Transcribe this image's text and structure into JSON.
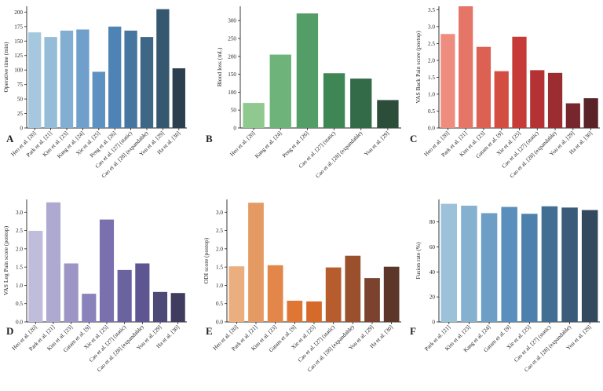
{
  "figure": {
    "chart_data": [
      {
        "panel": "A",
        "type": "bar",
        "ylabel": "Operative time (min)",
        "ylim": [
          0,
          210
        ],
        "yticks": [
          0,
          25,
          50,
          75,
          100,
          125,
          150,
          175,
          200
        ],
        "categories": [
          "Heo et al. [20]",
          "Park et al. [21]",
          "Kim et al. [23]",
          "Kang et al. [24]",
          "Xie et al. [25]",
          "Peng et al. [26]",
          "Cao et al. [27] (static)",
          "Cao et al. [28] (expandable)",
          "You et al. [29]",
          "Ha et al. [30]"
        ],
        "values": [
          165,
          157,
          168,
          170,
          97,
          175,
          168,
          157,
          205,
          103
        ],
        "colors": [
          "#a6c8de",
          "#95bcd8",
          "#82aed1",
          "#6f9fca",
          "#5d91c2",
          "#4f83b6",
          "#46759f",
          "#3e6687",
          "#355770",
          "#2c3f4f"
        ]
      },
      {
        "panel": "B",
        "type": "bar",
        "ylabel": "Blood loss (mL)",
        "ylim": [
          0,
          340
        ],
        "yticks": [
          0,
          50,
          100,
          150,
          200,
          250,
          300
        ],
        "categories": [
          "Heo et al. [20]",
          "Kang et al. [24]",
          "Peng et al. [26]",
          "Cao et al. [27] (static)",
          "Cao et al. [28] (expandable)",
          "You et al. [29]"
        ],
        "values": [
          70,
          205,
          320,
          153,
          138,
          78
        ],
        "colors": [
          "#90c990",
          "#6db37a",
          "#539d66",
          "#3e8654",
          "#336b48",
          "#2b4d39"
        ]
      },
      {
        "panel": "C",
        "type": "bar",
        "ylabel": "VAS Back Pain score (postop)",
        "ylim": [
          0,
          3.6
        ],
        "yticks": [
          0.0,
          0.5,
          1.0,
          1.5,
          2.0,
          2.5,
          3.0,
          3.5
        ],
        "categories": [
          "Heo et al. [20]",
          "Park et al. [21]",
          "Kim et al. [23]",
          "Gatam et al. [9]",
          "Xie et al. [25]",
          "Cao et al. [27] (static)",
          "Cao et al. [28] (expandable)",
          "You et al. [29]",
          "Ha et al. [30]"
        ],
        "values": [
          2.78,
          3.6,
          2.4,
          1.68,
          2.7,
          1.71,
          1.63,
          0.73,
          0.88
        ],
        "colors": [
          "#ee8c80",
          "#e47567",
          "#dd6152",
          "#d44d41",
          "#c63b37",
          "#b43233",
          "#9b2d31",
          "#77262e",
          "#5a2328"
        ]
      },
      {
        "panel": "D",
        "type": "bar",
        "ylabel": "VAS Leg Pain score (postop)",
        "ylim": [
          0,
          3.35
        ],
        "yticks": [
          0.0,
          0.5,
          1.0,
          1.5,
          2.0,
          2.5,
          3.0
        ],
        "categories": [
          "Heo et al. [20]",
          "Park et al. [21]",
          "Kim et al. [23]",
          "Gatam et al. [9]",
          "Xie et al. [25]",
          "Cao et al. [27] (static)",
          "Cao et al. [28] (expandable)",
          "You et al. [29]",
          "Ha et al. [30]"
        ],
        "values": [
          2.49,
          3.27,
          1.6,
          0.77,
          2.8,
          1.42,
          1.6,
          0.82,
          0.79
        ],
        "colors": [
          "#c0bcdc",
          "#aea9d1",
          "#9c95c6",
          "#8a82ba",
          "#7a70ad",
          "#6b62a0",
          "#5d5690",
          "#4e4a78",
          "#3f3c60"
        ]
      },
      {
        "panel": "E",
        "type": "bar",
        "ylabel": "ODI score (postop)",
        "ylim": [
          0,
          3.35
        ],
        "yticks": [
          0.0,
          0.5,
          1.0,
          1.5,
          2.0,
          2.5,
          3.0
        ],
        "categories": [
          "Heo et al. [20]",
          "Park et al. [21]",
          "Kim et al. [23]",
          "Gatam et al. [9]",
          "Xie et al. [25]",
          "Cao et al. [27] (static)",
          "Cao et al. [28] (expandable)",
          "You et al. [29]",
          "Ha et al. [30]"
        ],
        "values": [
          1.52,
          3.26,
          1.55,
          0.58,
          0.56,
          1.49,
          1.81,
          1.2,
          1.51
        ],
        "colors": [
          "#ebae7e",
          "#e69a63",
          "#e28749",
          "#e07634",
          "#d56a2b",
          "#b75c2c",
          "#9a4f2d",
          "#7b432d",
          "#5c3729"
        ]
      },
      {
        "panel": "F",
        "type": "bar",
        "ylabel": "Fusion rate (%)",
        "ylim": [
          0,
          98
        ],
        "yticks": [
          0,
          20,
          40,
          60,
          80
        ],
        "categories": [
          "Park et al. [21]",
          "Kim et al. [23]",
          "Kang et al. [24]",
          "Gatam et al. [9]",
          "Xie et al. [25]",
          "Cao et al. [27] (static)",
          "Cao et al. [28] (expandable)",
          "You et al. [29]"
        ],
        "values": [
          94.5,
          93.0,
          87.0,
          92.0,
          86.5,
          92.5,
          91.5,
          89.5
        ],
        "colors": [
          "#9cc2da",
          "#85b0d0",
          "#6c9ec6",
          "#5a8fbd",
          "#4e80ad",
          "#426e94",
          "#3a5c7a",
          "#34495d"
        ]
      }
    ]
  }
}
